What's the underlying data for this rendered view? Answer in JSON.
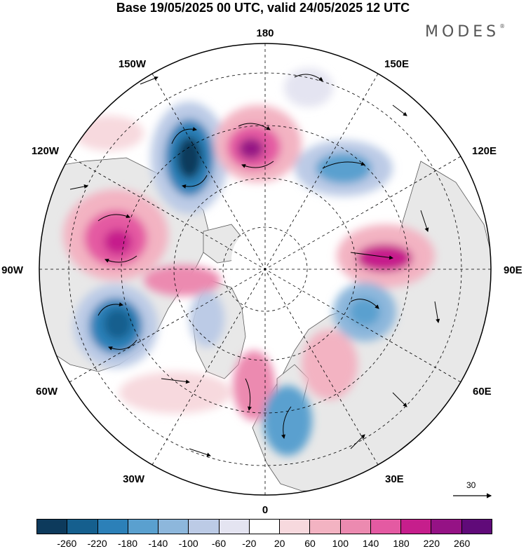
{
  "title": "Base 19/05/2025 00 UTC, valid 24/05/2025 12 UTC",
  "logo": "MODES",
  "logo_mark": "®",
  "longitude_labels": {
    "top": "180",
    "bottom": "0",
    "left": "90W",
    "right": "90E",
    "ul1": "150W",
    "ul2": "120W",
    "ll1": "60W",
    "ll2": "30W",
    "ur1": "150E",
    "ur2": "120E",
    "lr1": "60E",
    "lr2": "30E"
  },
  "vector_scale_label": "30",
  "colorbar": {
    "colors": [
      "#0d3a5c",
      "#155f8e",
      "#2c80b8",
      "#5aa0cf",
      "#8db7dc",
      "#bccbe6",
      "#e4e4f1",
      "#ffffff",
      "#f7d9de",
      "#f3b3c2",
      "#ec8ab0",
      "#e45aa2",
      "#c61e8c",
      "#951285",
      "#600a79"
    ],
    "ticks": [
      "-260",
      "-220",
      "-180",
      "-140",
      "-100",
      "-60",
      "-20",
      "20",
      "60",
      "100",
      "140",
      "180",
      "220",
      "260"
    ]
  },
  "colors": {
    "land": "#e8e8e8",
    "ocean": "#ffffff",
    "coast": "#5a5a5a"
  }
}
